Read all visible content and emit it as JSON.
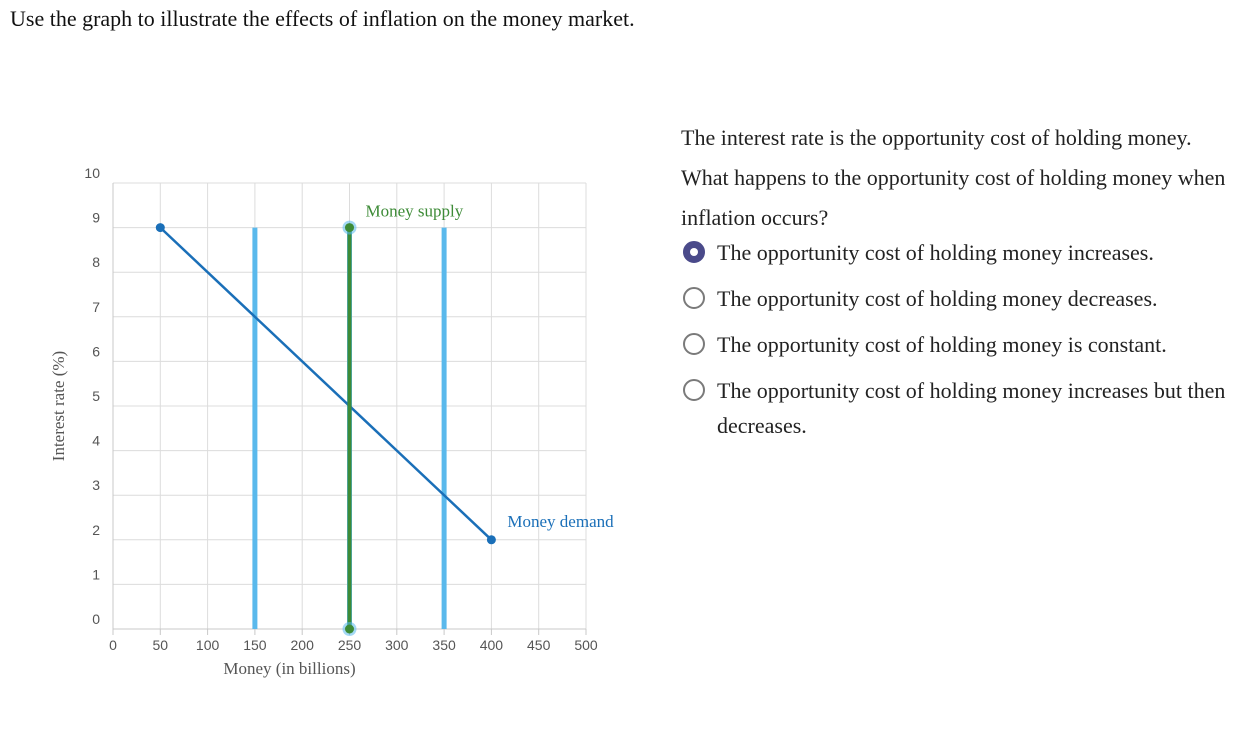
{
  "prompt": "Use the graph to illustrate the effects of inflation on the money market.",
  "question": "The interest rate is the opportunity cost of holding money. What happens to the opportunity cost of holding money when inflation occurs?",
  "options": [
    {
      "label": "The opportunity cost of holding money increases.",
      "selected": true
    },
    {
      "label": "The opportunity cost of holding money decreases.",
      "selected": false
    },
    {
      "label": "The opportunity cost of holding money is constant.",
      "selected": false
    },
    {
      "label": "The opportunity cost of holding money increases but then decreases.",
      "selected": false
    }
  ],
  "chart_data": {
    "type": "line",
    "xlabel": "Money (in billions)",
    "ylabel": "Interest rate (%)",
    "xlim": [
      0,
      500
    ],
    "ylim": [
      0,
      10
    ],
    "x_ticks": [
      0,
      50,
      100,
      150,
      200,
      250,
      300,
      350,
      400,
      450,
      500
    ],
    "y_ticks": [
      0,
      1,
      2,
      3,
      4,
      5,
      6,
      7,
      8,
      9,
      10
    ],
    "grid": true,
    "series": [
      {
        "name": "Money demand",
        "role": "demand",
        "color": "#1a6fb8",
        "points": [
          [
            50,
            9
          ],
          [
            400,
            2
          ]
        ]
      },
      {
        "name": "Money supply",
        "role": "supply",
        "color": "#3d8b37",
        "points": [
          [
            250,
            0
          ],
          [
            250,
            9
          ]
        ]
      }
    ],
    "reference_lines": [
      {
        "color": "#5ab9ec",
        "points": [
          [
            150,
            0
          ],
          [
            150,
            9
          ]
        ]
      },
      {
        "color": "#5ab9ec",
        "points": [
          [
            250,
            0
          ],
          [
            250,
            9
          ]
        ]
      },
      {
        "color": "#5ab9ec",
        "points": [
          [
            350,
            0
          ],
          [
            350,
            9
          ]
        ]
      }
    ]
  }
}
